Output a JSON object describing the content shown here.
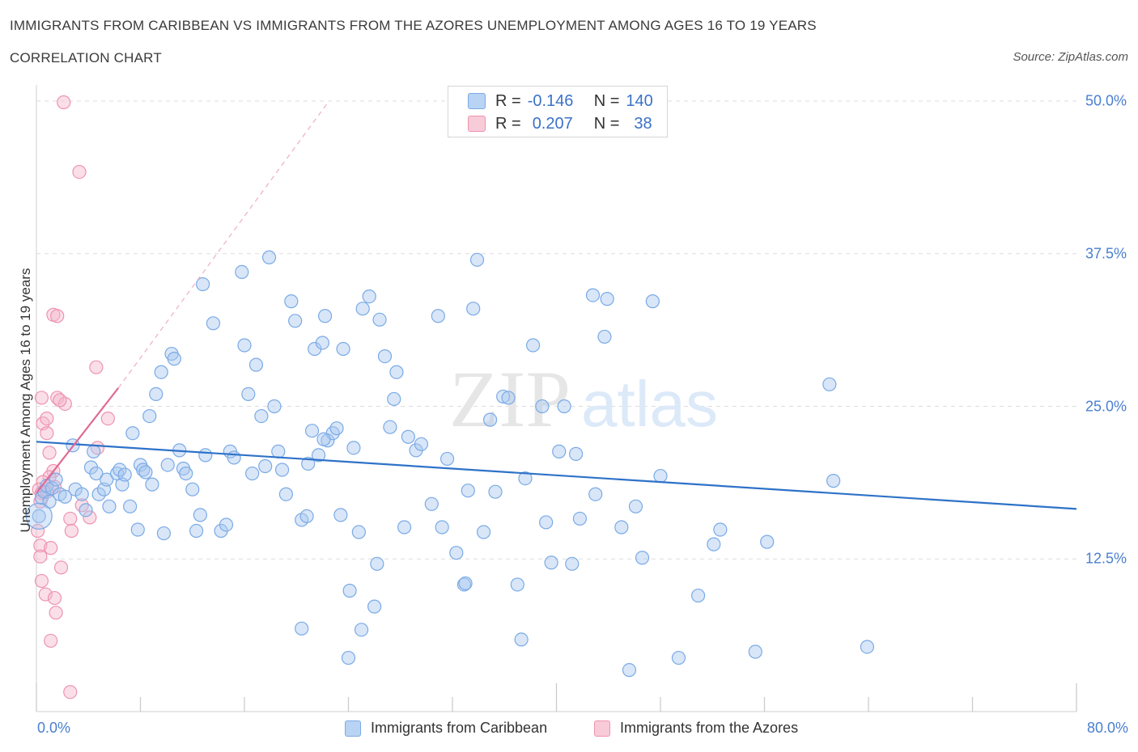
{
  "title": "IMMIGRANTS FROM CARIBBEAN VS IMMIGRANTS FROM THE AZORES UNEMPLOYMENT AMONG AGES 16 TO 19 YEARS",
  "subtitle": "CORRELATION CHART",
  "source": "Source: ZipAtlas.com",
  "watermark": {
    "zip": "ZIP",
    "atlas": "atlas"
  },
  "legend_top": {
    "rows": [
      {
        "r_label": "R =",
        "r_value": "-0.146",
        "n_label": "N =",
        "n_value": "140",
        "color": "#a8c8f0"
      },
      {
        "r_label": "R =",
        "r_value": "0.207",
        "n_label": "N =",
        "n_value": "38",
        "color": "#f4b8cc"
      }
    ]
  },
  "legend_bottom": [
    "Immigrants from Caribbean",
    "Immigrants from the Azores"
  ],
  "colors": {
    "caribbean_fill": "#a8c8f0",
    "caribbean_stroke": "#7aaae6",
    "caribbean_line": "#2e72c8",
    "azores_fill": "#f4b8cc",
    "azores_stroke": "#ee93b0",
    "azores_line": "#e06a96",
    "grid": "#dddddd",
    "tick_label": "#4a7fd0"
  },
  "chart_data": {
    "type": "scatter",
    "title": "IMMIGRANTS FROM CARIBBEAN VS IMMIGRANTS FROM THE AZORES UNEMPLOYMENT AMONG AGES 16 TO 19 YEARS",
    "xlabel": "",
    "ylabel": "Unemployment Among Ages 16 to 19 years",
    "xlim": [
      0,
      80
    ],
    "ylim": [
      0,
      50
    ],
    "x_tick_labels": [
      "0.0%",
      "80.0%"
    ],
    "y_ticks": [
      12.5,
      25.0,
      37.5,
      50.0
    ],
    "y_tick_labels": [
      "12.5%",
      "25.0%",
      "37.5%",
      "50.0%"
    ],
    "grid": true,
    "legend_position": "top-center",
    "series": [
      {
        "name": "Immigrants from Caribbean",
        "r": -0.146,
        "n": 140,
        "trend": [
          [
            0,
            22.1
          ],
          [
            80,
            16.6
          ]
        ],
        "points": [
          [
            0.2,
            16.0
          ],
          [
            0.4,
            17.5
          ],
          [
            0.6,
            18.0
          ],
          [
            0.8,
            18.5
          ],
          [
            1.0,
            17.2
          ],
          [
            1.2,
            18.3
          ],
          [
            1.5,
            19.0
          ],
          [
            1.8,
            17.8
          ],
          [
            2.2,
            17.6
          ],
          [
            2.8,
            21.8
          ],
          [
            3.0,
            18.2
          ],
          [
            3.5,
            17.8
          ],
          [
            3.8,
            16.5
          ],
          [
            4.2,
            20.0
          ],
          [
            4.4,
            21.3
          ],
          [
            4.6,
            19.5
          ],
          [
            4.8,
            17.8
          ],
          [
            5.2,
            18.2
          ],
          [
            5.4,
            19.0
          ],
          [
            5.6,
            16.8
          ],
          [
            6.2,
            19.5
          ],
          [
            6.4,
            19.8
          ],
          [
            6.6,
            18.6
          ],
          [
            6.8,
            19.4
          ],
          [
            7.2,
            16.8
          ],
          [
            7.4,
            22.8
          ],
          [
            7.8,
            14.9
          ],
          [
            8.0,
            20.2
          ],
          [
            8.2,
            19.8
          ],
          [
            8.4,
            19.6
          ],
          [
            8.7,
            24.2
          ],
          [
            8.9,
            18.6
          ],
          [
            9.2,
            26.0
          ],
          [
            9.8,
            14.6
          ],
          [
            9.6,
            27.8
          ],
          [
            10.1,
            20.2
          ],
          [
            10.4,
            29.3
          ],
          [
            10.6,
            28.9
          ],
          [
            11.0,
            21.4
          ],
          [
            11.3,
            19.9
          ],
          [
            11.5,
            19.5
          ],
          [
            12.0,
            18.2
          ],
          [
            12.3,
            14.8
          ],
          [
            12.6,
            16.1
          ],
          [
            12.8,
            35.0
          ],
          [
            13.0,
            21.0
          ],
          [
            13.6,
            31.8
          ],
          [
            14.2,
            14.8
          ],
          [
            14.6,
            15.3
          ],
          [
            14.9,
            21.3
          ],
          [
            15.2,
            20.8
          ],
          [
            15.8,
            36.0
          ],
          [
            16.0,
            30.0
          ],
          [
            16.3,
            26.0
          ],
          [
            16.6,
            19.5
          ],
          [
            16.9,
            28.4
          ],
          [
            17.3,
            24.2
          ],
          [
            17.6,
            20.1
          ],
          [
            17.9,
            37.2
          ],
          [
            18.3,
            25.0
          ],
          [
            18.6,
            21.3
          ],
          [
            18.9,
            19.8
          ],
          [
            19.2,
            17.8
          ],
          [
            19.6,
            33.6
          ],
          [
            19.9,
            32.0
          ],
          [
            20.4,
            15.7
          ],
          [
            20.9,
            20.3
          ],
          [
            21.2,
            23.0
          ],
          [
            21.4,
            29.7
          ],
          [
            21.7,
            21.0
          ],
          [
            22.0,
            30.2
          ],
          [
            22.2,
            32.4
          ],
          [
            22.4,
            22.2
          ],
          [
            22.8,
            22.8
          ],
          [
            23.1,
            23.2
          ],
          [
            23.4,
            16.1
          ],
          [
            23.6,
            29.7
          ],
          [
            24.1,
            9.9
          ],
          [
            24.4,
            21.6
          ],
          [
            24.8,
            14.7
          ],
          [
            25.1,
            33.0
          ],
          [
            25.6,
            34.0
          ],
          [
            26.2,
            12.1
          ],
          [
            26.4,
            32.1
          ],
          [
            26.8,
            29.1
          ],
          [
            27.2,
            23.3
          ],
          [
            27.5,
            25.6
          ],
          [
            27.7,
            27.8
          ],
          [
            28.3,
            15.1
          ],
          [
            28.6,
            22.5
          ],
          [
            29.2,
            21.4
          ],
          [
            29.6,
            21.9
          ],
          [
            30.4,
            17.0
          ],
          [
            30.9,
            32.4
          ],
          [
            31.2,
            15.1
          ],
          [
            31.6,
            20.7
          ],
          [
            32.3,
            13.0
          ],
          [
            32.9,
            10.4
          ],
          [
            33.2,
            18.1
          ],
          [
            33.6,
            33.0
          ],
          [
            33.9,
            37.0
          ],
          [
            34.4,
            14.7
          ],
          [
            34.9,
            23.9
          ],
          [
            35.3,
            18.0
          ],
          [
            35.9,
            25.8
          ],
          [
            36.3,
            25.7
          ],
          [
            37.0,
            10.4
          ],
          [
            37.3,
            5.9
          ],
          [
            37.6,
            19.1
          ],
          [
            38.2,
            30.0
          ],
          [
            38.9,
            25.0
          ],
          [
            39.2,
            15.5
          ],
          [
            39.6,
            12.2
          ],
          [
            40.2,
            21.3
          ],
          [
            40.6,
            25.0
          ],
          [
            41.2,
            12.1
          ],
          [
            41.5,
            21.1
          ],
          [
            41.8,
            15.8
          ],
          [
            42.8,
            34.1
          ],
          [
            43.7,
            30.7
          ],
          [
            43.9,
            33.8
          ],
          [
            45.0,
            15.1
          ],
          [
            45.6,
            3.4
          ],
          [
            46.1,
            16.8
          ],
          [
            46.6,
            12.6
          ],
          [
            47.4,
            33.6
          ],
          [
            48.0,
            19.3
          ],
          [
            49.4,
            4.4
          ],
          [
            50.9,
            9.5
          ],
          [
            52.1,
            13.7
          ],
          [
            52.6,
            14.9
          ],
          [
            55.3,
            4.9
          ],
          [
            56.2,
            13.9
          ],
          [
            61.0,
            26.8
          ],
          [
            61.3,
            18.9
          ],
          [
            63.9,
            5.3
          ],
          [
            20.4,
            6.8
          ],
          [
            25.0,
            6.7
          ],
          [
            24.0,
            4.4
          ],
          [
            26.0,
            8.6
          ],
          [
            33.0,
            10.5
          ],
          [
            20.8,
            16.0
          ],
          [
            22.1,
            22.3
          ],
          [
            43.0,
            17.8
          ]
        ]
      },
      {
        "name": "Immigrants from the Azores",
        "r": 0.207,
        "n": 38,
        "trend": [
          [
            0,
            17.9
          ],
          [
            6.3,
            26.5
          ]
        ],
        "trend_dashed": [
          [
            6.3,
            26.5
          ],
          [
            22.5,
            50
          ]
        ],
        "points": [
          [
            2.1,
            49.9
          ],
          [
            3.3,
            44.2
          ],
          [
            1.3,
            32.5
          ],
          [
            1.6,
            32.4
          ],
          [
            4.6,
            28.2
          ],
          [
            0.4,
            25.7
          ],
          [
            1.6,
            25.7
          ],
          [
            2.2,
            25.2
          ],
          [
            1.8,
            25.5
          ],
          [
            5.5,
            24.0
          ],
          [
            0.5,
            23.6
          ],
          [
            0.8,
            24.0
          ],
          [
            0.8,
            22.8
          ],
          [
            4.7,
            21.6
          ],
          [
            1.0,
            21.2
          ],
          [
            1.3,
            19.7
          ],
          [
            1.0,
            19.2
          ],
          [
            0.5,
            18.8
          ],
          [
            0.2,
            18.2
          ],
          [
            0.4,
            17.9
          ],
          [
            1.4,
            18.4
          ],
          [
            0.8,
            18.0
          ],
          [
            3.5,
            16.9
          ],
          [
            0.3,
            17.2
          ],
          [
            2.6,
            15.8
          ],
          [
            4.1,
            15.9
          ],
          [
            2.7,
            14.8
          ],
          [
            0.1,
            14.8
          ],
          [
            0.3,
            13.6
          ],
          [
            1.1,
            13.4
          ],
          [
            0.3,
            12.7
          ],
          [
            1.9,
            11.8
          ],
          [
            0.4,
            10.7
          ],
          [
            0.7,
            9.6
          ],
          [
            1.4,
            9.3
          ],
          [
            1.5,
            8.1
          ],
          [
            1.1,
            5.8
          ],
          [
            2.6,
            1.6
          ]
        ]
      }
    ]
  }
}
